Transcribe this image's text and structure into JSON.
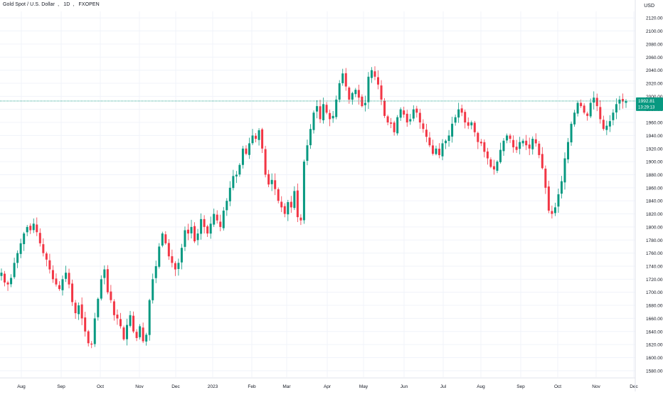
{
  "header": {
    "symbol_title": "Gold Spot / U.S. Dollar",
    "interval": "1D",
    "source": "FXOPEN",
    "currency": "USD"
  },
  "price_tag": {
    "last_price": "1992.81",
    "countdown": "13:29:13"
  },
  "colors": {
    "up": "#089981",
    "down": "#f23645",
    "last_price_line": "#089981",
    "grid": "#f0f3fa",
    "axis_text": "#131722"
  },
  "chart_data": {
    "type": "candlestick",
    "y_axis": {
      "ylim": [
        1570,
        2130
      ],
      "ticks": [
        1580,
        1600,
        1620,
        1640,
        1660,
        1680,
        1700,
        1720,
        1740,
        1760,
        1780,
        1800,
        1820,
        1840,
        1860,
        1880,
        1900,
        1920,
        1940,
        1960,
        1980,
        2000,
        2020,
        2040,
        2060,
        2080,
        2100,
        2120
      ],
      "tick_labels": [
        "1580.00",
        "1600.00",
        "1620.00",
        "1640.00",
        "1660.00",
        "1680.00",
        "1700.00",
        "1720.00",
        "1740.00",
        "1760.00",
        "1780.00",
        "1800.00",
        "1820.00",
        "1840.00",
        "1860.00",
        "1880.00",
        "1900.00",
        "1920.00",
        "1940.00",
        "1960.00",
        "1980.00",
        "2000.00",
        "2020.00",
        "2040.00",
        "2060.00",
        "2080.00",
        "2100.00",
        "2120.00"
      ]
    },
    "x_axis": {
      "tick_labels": [
        "Aug",
        "Sep",
        "Oct",
        "Nov",
        "Dec",
        "2023",
        "Feb",
        "Mar",
        "Apr",
        "May",
        "Jun",
        "Jul",
        "Aug",
        "Sep",
        "Oct",
        "Nov",
        "Dec"
      ]
    },
    "grid": true,
    "last_price": 1992.81,
    "closes": [
      1730,
      1715,
      1712,
      1722,
      1745,
      1760,
      1775,
      1790,
      1800,
      1795,
      1805,
      1792,
      1775,
      1760,
      1750,
      1735,
      1720,
      1712,
      1705,
      1720,
      1730,
      1712,
      1685,
      1668,
      1680,
      1660,
      1640,
      1622,
      1620,
      1660,
      1690,
      1720,
      1735,
      1700,
      1688,
      1665,
      1660,
      1648,
      1628,
      1650,
      1665,
      1640,
      1630,
      1648,
      1625,
      1635,
      1688,
      1720,
      1740,
      1770,
      1790,
      1775,
      1755,
      1745,
      1735,
      1745,
      1768,
      1795,
      1790,
      1800,
      1778,
      1790,
      1812,
      1800,
      1790,
      1805,
      1820,
      1810,
      1800,
      1825,
      1840,
      1860,
      1878,
      1880,
      1895,
      1920,
      1912,
      1928,
      1940,
      1935,
      1948,
      1920,
      1880,
      1865,
      1872,
      1858,
      1840,
      1830,
      1820,
      1838,
      1830,
      1855,
      1815,
      1810,
      1900,
      1925,
      1950,
      1975,
      1985,
      1965,
      1988,
      1975,
      1965,
      1970,
      1995,
      2020,
      2035,
      2015,
      1995,
      2005,
      2010,
      1998,
      1985,
      1990,
      2030,
      2040,
      2030,
      2018,
      1995,
      1970,
      1960,
      1958,
      1945,
      1968,
      1980,
      1972,
      1960,
      1965,
      1980,
      1975,
      1960,
      1950,
      1938,
      1925,
      1912,
      1920,
      1910,
      1928,
      1932,
      1940,
      1958,
      1968,
      1980,
      1975,
      1960,
      1955,
      1960,
      1945,
      1930,
      1928,
      1915,
      1905,
      1892,
      1888,
      1900,
      1918,
      1932,
      1940,
      1935,
      1922,
      1918,
      1930,
      1932,
      1925,
      1920,
      1935,
      1928,
      1910,
      1890,
      1860,
      1825,
      1820,
      1830,
      1850,
      1870,
      1905,
      1930,
      1958,
      1975,
      1990,
      1985,
      1975,
      1970,
      1990,
      1998,
      1985,
      1965,
      1950,
      1955,
      1962,
      1975,
      1988,
      1995,
      1992,
      1992.81
    ]
  }
}
